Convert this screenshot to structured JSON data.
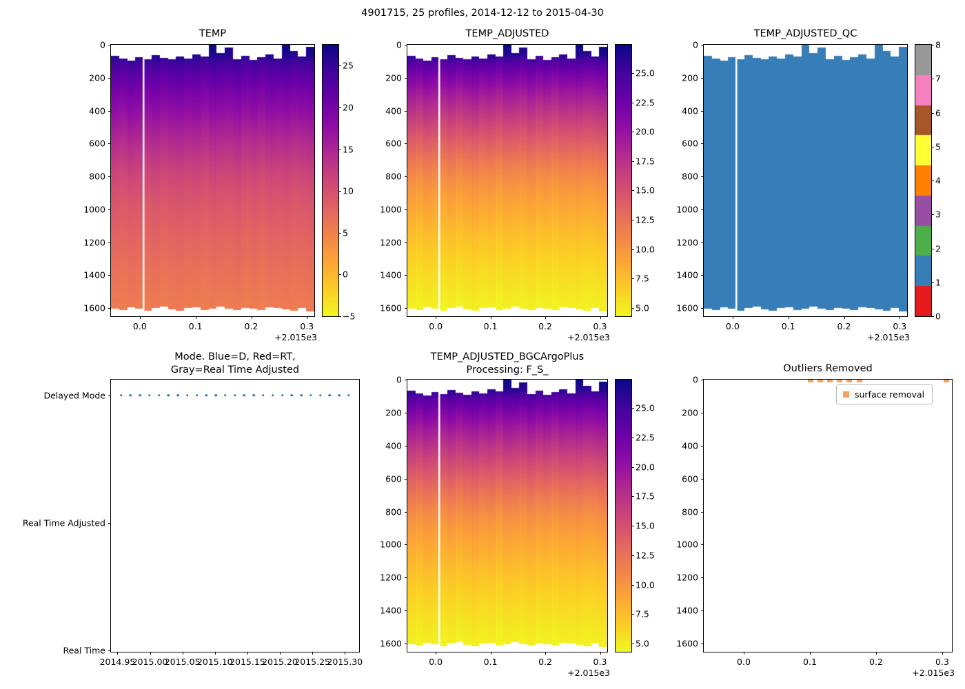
{
  "figure": {
    "title": "4901715, 25 profiles, 2014-12-12 to 2015-04-30",
    "background": "#ffffff",
    "offset_label": "+2.015e3"
  },
  "colormaps": {
    "plasma": [
      "#0d0887",
      "#41049d",
      "#6a00a8",
      "#8f0da4",
      "#b12a90",
      "#cc4778",
      "#e16462",
      "#f2844b",
      "#fca636",
      "#fcce25",
      "#f0f921"
    ],
    "set1": [
      "#e41a1c",
      "#377eb8",
      "#4daf4a",
      "#984ea3",
      "#ff7f00",
      "#ffff33",
      "#a65628",
      "#f781bf",
      "#999999"
    ]
  },
  "profiles": {
    "count": 25,
    "spacing": 0.0146,
    "gap_time": 2015.0066,
    "times": [
      2014.9555,
      2014.9701,
      2014.9847,
      2014.9993,
      2015.0139,
      2015.0285,
      2015.0431,
      2015.0577,
      2015.0723,
      2015.0869,
      2015.1015,
      2015.1161,
      2015.1307,
      2015.1453,
      2015.1599,
      2015.1745,
      2015.1891,
      2015.2037,
      2015.2183,
      2015.2329,
      2015.2475,
      2015.2621,
      2015.2767,
      2015.2913,
      2015.3059
    ],
    "depths": [
      0,
      60,
      100,
      150,
      200,
      300,
      400,
      500,
      600,
      700,
      800,
      900,
      1000,
      1100,
      1200,
      1300,
      1400,
      1500,
      1600,
      1660
    ],
    "temp_raw": [
      27.3,
      26.2,
      24.4,
      22.9,
      21.6,
      19.5,
      17.6,
      15.8,
      14.1,
      12.5,
      11.1,
      10.0,
      9.1,
      8.4,
      7.7,
      7.1,
      6.5,
      6.0,
      5.6,
      5.4
    ],
    "temp_adjusted": [
      27.3,
      26.1,
      24.3,
      22.7,
      21.4,
      19.2,
      17.3,
      15.5,
      13.7,
      12.1,
      10.7,
      9.6,
      8.7,
      7.9,
      7.1,
      6.4,
      5.8,
      5.2,
      4.7,
      4.5
    ],
    "tops": [
      68,
      82,
      95,
      75,
      88,
      62,
      78,
      90,
      70,
      84,
      58,
      72,
      0,
      52,
      15,
      86,
      66,
      92,
      74,
      60,
      82,
      0,
      38,
      70,
      12
    ],
    "bottoms": [
      1602,
      1612,
      1596,
      1606,
      1618,
      1600,
      1592,
      1608,
      1615,
      1600,
      1597,
      1611,
      1603,
      1590,
      1606,
      1614,
      1598,
      1605,
      1612,
      1596,
      1601,
      1608,
      1616,
      1600,
      1620
    ],
    "temp_offsets": [
      0.2,
      -0.3,
      0.45,
      0.0,
      -0.25,
      0.35,
      -0.4,
      0.15,
      0.5,
      -0.1,
      0.25,
      -0.5,
      0.3,
      0.05,
      -0.2,
      0.4,
      -0.35,
      0.1,
      -0.45,
      0.2,
      0.0,
      0.3,
      -0.15,
      0.1,
      0.4
    ]
  },
  "chart_data": [
    {
      "id": "temp",
      "type": "heatmap",
      "title": "TEMP",
      "xlim": [
        2014.9482,
        2015.3132
      ],
      "ylim": [
        0,
        1650
      ],
      "x_tick_labels": [
        "0.0",
        "0.1",
        "0.2",
        "0.3"
      ],
      "x_tick_values": [
        2015.0,
        2015.1,
        2015.2,
        2015.3
      ],
      "x_offset_label": "+2.015e3",
      "y_tick_values": [
        0,
        200,
        400,
        600,
        800,
        1000,
        1200,
        1400,
        1600
      ],
      "vmin": -5,
      "vmax": 27.5,
      "cmap": "plasma_reversed",
      "series": "temp_raw",
      "colorbar_tick_labels": [
        "25",
        "20",
        "15",
        "10",
        "5",
        "0",
        "−5"
      ],
      "colorbar_tick_values": [
        25,
        20,
        15,
        10,
        5,
        0,
        -5
      ]
    },
    {
      "id": "temp_adjusted",
      "type": "heatmap",
      "title": "TEMP_ADJUSTED",
      "xlim": [
        2014.9482,
        2015.3132
      ],
      "ylim": [
        0,
        1650
      ],
      "x_tick_labels": [
        "0.0",
        "0.1",
        "0.2",
        "0.3"
      ],
      "x_tick_values": [
        2015.0,
        2015.1,
        2015.2,
        2015.3
      ],
      "x_offset_label": "+2.015e3",
      "y_tick_values": [
        0,
        200,
        400,
        600,
        800,
        1000,
        1200,
        1400,
        1600
      ],
      "vmin": 4.3,
      "vmax": 27.4,
      "cmap": "plasma_reversed",
      "series": "temp_adjusted",
      "colorbar_tick_labels": [
        "25.0",
        "22.5",
        "20.0",
        "17.5",
        "15.0",
        "12.5",
        "10.0",
        "7.5",
        "5.0"
      ],
      "colorbar_tick_values": [
        25.0,
        22.5,
        20.0,
        17.5,
        15.0,
        12.5,
        10.0,
        7.5,
        5.0
      ]
    },
    {
      "id": "temp_adjusted_qc",
      "type": "heatmap",
      "title": "TEMP_ADJUSTED_QC",
      "xlim": [
        2014.9482,
        2015.3132
      ],
      "ylim": [
        0,
        1650
      ],
      "x_tick_labels": [
        "0.0",
        "0.1",
        "0.2",
        "0.3"
      ],
      "x_tick_values": [
        2015.0,
        2015.1,
        2015.2,
        2015.3
      ],
      "x_offset_label": "+2.015e3",
      "y_tick_values": [
        0,
        200,
        400,
        600,
        800,
        1000,
        1200,
        1400,
        1600
      ],
      "fill_qc_value": 1,
      "cmap": "set1_discrete",
      "colorbar_tick_labels": [
        "8",
        "7",
        "6",
        "5",
        "4",
        "3",
        "2",
        "1",
        "0"
      ],
      "colorbar_tick_values": [
        8,
        7,
        6,
        5,
        4,
        3,
        2,
        1,
        0
      ]
    },
    {
      "id": "mode",
      "type": "scatter",
      "title_lines": [
        "Mode. Blue=D, Red=RT,",
        "Gray=Real Time Adjusted"
      ],
      "xlim": [
        2014.94,
        2015.322
      ],
      "x_tick_labels": [
        "2014.95",
        "2015.00",
        "2015.05",
        "2015.10",
        "2015.15",
        "2015.20",
        "2015.25",
        "2015.30"
      ],
      "x_tick_values": [
        2014.95,
        2015.0,
        2015.05,
        2015.1,
        2015.15,
        2015.2,
        2015.25,
        2015.3
      ],
      "categories": [
        "Delayed Mode",
        "Real Time Adjusted",
        "Real Time"
      ],
      "points_category": "Delayed Mode",
      "point_color": "#1f77b4"
    },
    {
      "id": "temp_adjusted_bgc",
      "type": "heatmap",
      "title_lines": [
        "TEMP_ADJUSTED_BGCArgoPlus",
        "Processing: F_S_"
      ],
      "xlim": [
        2014.9482,
        2015.3132
      ],
      "ylim": [
        0,
        1650
      ],
      "x_tick_labels": [
        "0.0",
        "0.1",
        "0.2",
        "0.3"
      ],
      "x_tick_values": [
        2015.0,
        2015.1,
        2015.2,
        2015.3
      ],
      "x_offset_label": "+2.015e3",
      "y_tick_values": [
        0,
        200,
        400,
        600,
        800,
        1000,
        1200,
        1400,
        1600
      ],
      "vmin": 4.3,
      "vmax": 27.4,
      "cmap": "plasma_reversed",
      "series": "temp_adjusted",
      "colorbar_tick_labels": [
        "25.0",
        "22.5",
        "20.0",
        "17.5",
        "15.0",
        "12.5",
        "10.0",
        "7.5",
        "5.0"
      ],
      "colorbar_tick_values": [
        25.0,
        22.5,
        20.0,
        17.5,
        15.0,
        12.5,
        10.0,
        7.5,
        5.0
      ]
    },
    {
      "id": "outliers",
      "type": "scatter",
      "title": "Outliers Removed",
      "xlim": [
        2014.9396,
        2015.3146
      ],
      "ylim": [
        0,
        1650
      ],
      "x_tick_labels": [
        "0.0",
        "0.1",
        "0.2",
        "0.3"
      ],
      "x_tick_values": [
        2015.0,
        2015.1,
        2015.2,
        2015.3
      ],
      "x_offset_label": "+2.015e3",
      "y_tick_values": [
        0,
        200,
        400,
        600,
        800,
        1000,
        1200,
        1400,
        1600
      ],
      "legend": {
        "label": "surface removal",
        "marker_color": "#f4a460"
      },
      "marker_color": "#f4a460",
      "removed_points": {
        "x": [
          2015.1015,
          2015.1161,
          2015.1307,
          2015.1453,
          2015.1599,
          2015.1745,
          2015.3059
        ],
        "y_depth": 0
      }
    }
  ]
}
